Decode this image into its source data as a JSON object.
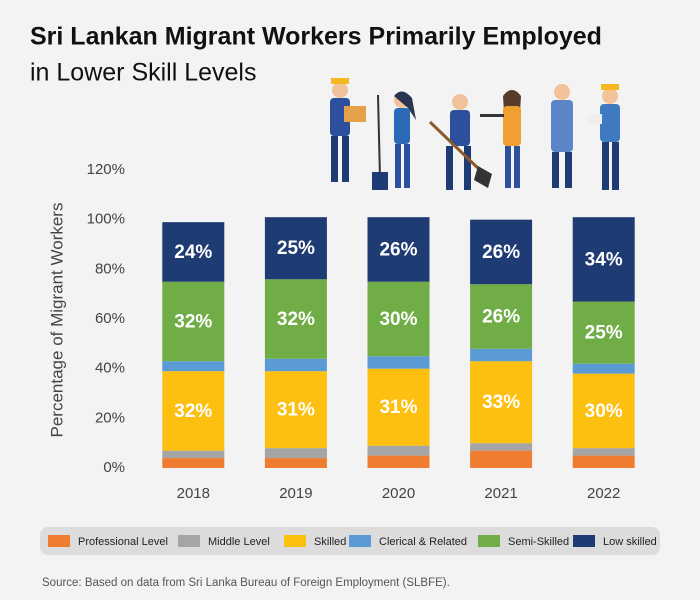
{
  "chart_data": {
    "type": "stacked-bar",
    "title": "Sri Lankan Migrant Workers Primarily Employed",
    "subtitle": "in Lower Skill Levels",
    "y_label": "Percentage of Migrant Workers",
    "source": "Source: Based on data from Sri Lanka Bureau of Foreign Employment (SLBFE).",
    "categories": [
      "2018",
      "2019",
      "2020",
      "2021",
      "2022"
    ],
    "ylim": [
      0,
      120
    ],
    "yticks": [
      {
        "value": 0,
        "label": "0%"
      },
      {
        "value": 20,
        "label": "20%"
      },
      {
        "value": 40,
        "label": "40%"
      },
      {
        "value": 60,
        "label": "60%"
      },
      {
        "value": 80,
        "label": "80%"
      },
      {
        "value": 100,
        "label": "100%"
      },
      {
        "value": 120,
        "label": "120%"
      }
    ],
    "grid": false,
    "series": [
      {
        "name": "Professional Level",
        "color": "#ef7d31",
        "values": [
          4,
          4,
          5,
          7,
          5
        ]
      },
      {
        "name": "Middle Level",
        "color": "#a5a5a5",
        "values": [
          3,
          4,
          4,
          3,
          3
        ]
      },
      {
        "name": "Skilled",
        "color": "#fdc010",
        "values": [
          32,
          31,
          31,
          33,
          30
        ],
        "value_labels": [
          "32%",
          "31%",
          "31%",
          "33%",
          "30%"
        ]
      },
      {
        "name": "Clerical & Related",
        "color": "#5b9bd5",
        "values": [
          4,
          5,
          5,
          5,
          4
        ]
      },
      {
        "name": "Semi-Skilled",
        "color": "#70ad47",
        "values": [
          32,
          32,
          30,
          26,
          25
        ],
        "value_labels": [
          "32%",
          "32%",
          "30%",
          "26%",
          "25%"
        ]
      },
      {
        "name": "Low skilled",
        "color": "#1f3b73",
        "values": [
          24,
          25,
          26,
          26,
          34
        ],
        "value_labels": [
          "24%",
          "25%",
          "26%",
          "26%",
          "34%"
        ]
      }
    ]
  }
}
